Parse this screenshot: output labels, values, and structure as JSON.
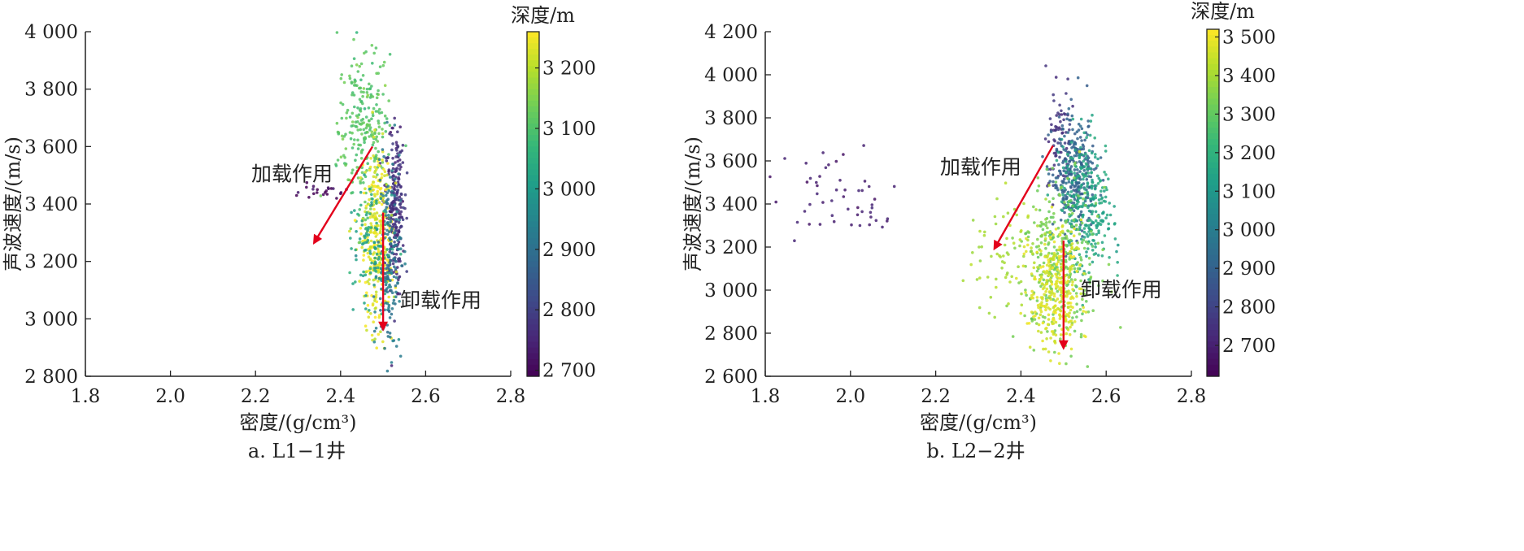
{
  "chart_data": [
    {
      "type": "scatter",
      "caption": "a. L1−1井",
      "xlabel": "密度/(g/cm³)",
      "ylabel": "声波速度/(m/s)",
      "xlim": [
        1.8,
        2.8
      ],
      "ylim": [
        2800,
        4000
      ],
      "x_ticks": [
        1.8,
        2.0,
        2.2,
        2.4,
        2.6,
        2.8
      ],
      "x_tick_labels": [
        "1.8",
        "2.0",
        "2.2",
        "2.4",
        "2.6",
        "2.8"
      ],
      "y_ticks": [
        2800,
        3000,
        3200,
        3400,
        3600,
        3800,
        4000
      ],
      "y_tick_labels": [
        "2 800",
        "3 000",
        "3 200",
        "3 400",
        "3 600",
        "3 800",
        "4 000"
      ],
      "colorbar": {
        "title": "深度/m",
        "range": [
          2690,
          3260
        ],
        "ticks": [
          2700,
          2800,
          2900,
          3000,
          3100,
          3200
        ],
        "tick_labels": [
          "2 700",
          "2 800",
          "2 900",
          "3 000",
          "3 100",
          "3 200"
        ],
        "colormap": "viridis"
      },
      "clusters": [
        {
          "depth": 3110,
          "x_mean": 2.455,
          "x_sd": 0.03,
          "y_mean": 3660,
          "y_sd": 150,
          "count": 260
        },
        {
          "depth": 2770,
          "x_mean": 2.527,
          "x_sd": 0.012,
          "y_mean": 3400,
          "y_sd": 140,
          "count": 240
        },
        {
          "depth": 3235,
          "x_mean": 2.485,
          "x_sd": 0.017,
          "y_mean": 3280,
          "y_sd": 160,
          "count": 320
        },
        {
          "depth": 2920,
          "x_mean": 2.515,
          "x_sd": 0.014,
          "y_mean": 3180,
          "y_sd": 170,
          "count": 180
        },
        {
          "depth": 3020,
          "x_mean": 2.47,
          "x_sd": 0.025,
          "y_mean": 3250,
          "y_sd": 90,
          "count": 100
        },
        {
          "depth": 2700,
          "x_mean": 2.36,
          "x_sd": 0.04,
          "y_mean": 3445,
          "y_sd": 15,
          "count": 22
        }
      ],
      "annotations": [
        {
          "text": "加载作用",
          "x": 2.19,
          "y": 3480
        },
        {
          "text": "卸载作用",
          "x": 2.54,
          "y": 3040
        }
      ],
      "arrows": [
        {
          "from": [
            2.475,
            3600
          ],
          "to": [
            2.34,
            3270
          ]
        },
        {
          "from": [
            2.5,
            3370
          ],
          "to": [
            2.5,
            2970
          ]
        }
      ]
    },
    {
      "type": "scatter",
      "caption": "b. L2−2井",
      "xlabel": "密度/(g/cm³)",
      "ylabel": "声波速度/(m/s)",
      "xlim": [
        1.8,
        2.8
      ],
      "ylim": [
        2600,
        4200
      ],
      "x_ticks": [
        1.8,
        2.0,
        2.2,
        2.4,
        2.6,
        2.8
      ],
      "x_tick_labels": [
        "1.8",
        "2.0",
        "2.2",
        "2.4",
        "2.6",
        "2.8"
      ],
      "y_ticks": [
        2600,
        2800,
        3000,
        3200,
        3400,
        3600,
        3800,
        4000,
        4200
      ],
      "y_tick_labels": [
        "2 600",
        "2 800",
        "3 000",
        "3 200",
        "3 400",
        "3 600",
        "3 800",
        "4 000",
        "4 200"
      ],
      "colorbar": {
        "title": "深度/m",
        "range": [
          2620,
          3520
        ],
        "ticks": [
          2700,
          2800,
          2900,
          3000,
          3100,
          3200,
          3300,
          3400,
          3500
        ],
        "tick_labels": [
          "2 700",
          "2 800",
          "2 900",
          "3 000",
          "3 100",
          "3 200",
          "3 300",
          "3 400",
          "3 500"
        ],
        "colormap": "viridis"
      },
      "clusters": [
        {
          "depth": 2700,
          "x_mean": 1.97,
          "x_sd": 0.09,
          "y_mean": 3450,
          "y_sd": 130,
          "count": 55
        },
        {
          "depth": 2760,
          "x_mean": 2.49,
          "x_sd": 0.015,
          "y_mean": 3720,
          "y_sd": 150,
          "count": 70
        },
        {
          "depth": 2900,
          "x_mean": 2.525,
          "x_sd": 0.025,
          "y_mean": 3520,
          "y_sd": 130,
          "count": 300
        },
        {
          "depth": 3150,
          "x_mean": 2.555,
          "x_sd": 0.03,
          "y_mean": 3400,
          "y_sd": 160,
          "count": 280
        },
        {
          "depth": 3330,
          "x_mean": 2.49,
          "x_sd": 0.045,
          "y_mean": 3120,
          "y_sd": 170,
          "count": 320
        },
        {
          "depth": 3470,
          "x_mean": 2.48,
          "x_sd": 0.03,
          "y_mean": 3000,
          "y_sd": 150,
          "count": 300
        },
        {
          "depth": 3400,
          "x_mean": 2.37,
          "x_sd": 0.05,
          "y_mean": 3200,
          "y_sd": 120,
          "count": 70
        }
      ],
      "annotations": [
        {
          "text": "加载作用",
          "x": 2.21,
          "y": 3540
        },
        {
          "text": "卸载作用",
          "x": 2.54,
          "y": 2970
        }
      ],
      "arrows": [
        {
          "from": [
            2.475,
            3670
          ],
          "to": [
            2.34,
            3200
          ]
        },
        {
          "from": [
            2.5,
            3230
          ],
          "to": [
            2.5,
            2740
          ]
        }
      ]
    }
  ]
}
